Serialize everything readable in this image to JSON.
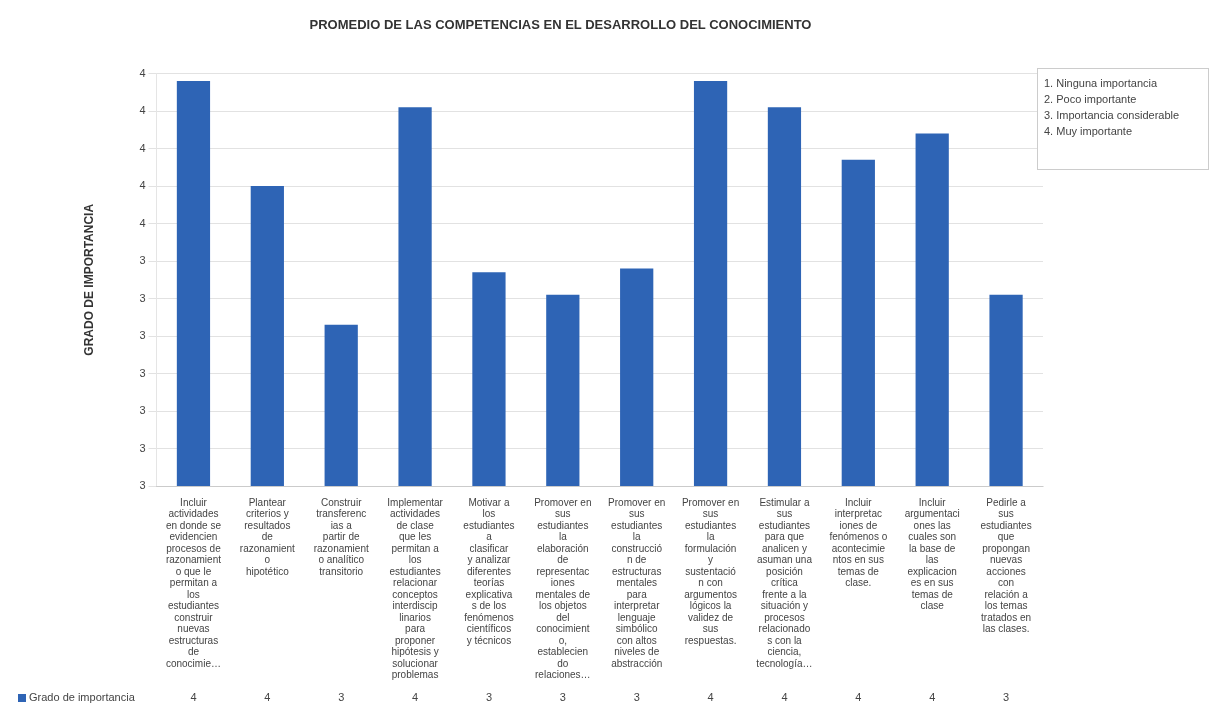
{
  "chart_data": {
    "type": "bar",
    "title": "PROMEDIO DE LAS COMPETENCIAS EN EL DESARROLLO DEL CONOCIMIENTO",
    "ylabel": "GRADO DE IMPORTANCIA",
    "categories": [
      "Incluir actividades en donde se evidencien procesos de razonamiento que le permitan a los estudiantes construir nuevas estructuras de conocimie…",
      "Plantear criterios y resultados de razonamiento hipotético",
      "Construir transferencias a partir de razonamiento analítico transitorio",
      "Implementar actividades de clase que les permitan a los estudiantes relacionar conceptos interdisciplinarios para proponer hipótesis y solucionar problemas",
      "Motivar a los estudiantes a clasificar y analizar diferentes teorías explicativas de los fenómenos científicos y técnicos",
      "Promover en sus estudiantes la elaboración de representaciones mentales de los objetos del conocimiento, estableciendo relaciones…",
      "Promover en sus estudiantes la construcción de estructuras mentales para interpretar lenguaje simbólico con altos niveles de abstracción",
      "Promover en sus estudiantes la formulación y sustentación con argumentos lógicos la validez de sus respuestas.",
      "Estimular a sus estudiantes para que analicen y asuman una posición crítica frente a la situación y procesos relacionados con la ciencia, tecnología…",
      "Incluir interpretaciones de fenómenos o acontecimientos en sus temas de clase.",
      "Incluir argumentaciones las cuales son la base de las explicaciones en sus temas de clase",
      "Pedirle a sus estudiantes que propongan nuevas acciones con relación a los temas tratados en las clases."
    ],
    "series": [
      {
        "name": "Grado de importancia",
        "color": "#2e64b5",
        "values": [
          3.88,
          3.6,
          3.23,
          3.81,
          3.37,
          3.31,
          3.38,
          3.88,
          3.81,
          3.67,
          3.74,
          3.31
        ],
        "value_labels": [
          "4",
          "4",
          "3",
          "4",
          "3",
          "3",
          "3",
          "4",
          "4",
          "4",
          "4",
          "3"
        ]
      }
    ],
    "ylim": [
      2.8,
      3.9
    ],
    "yticks": [
      {
        "value": 2.8,
        "label": "3"
      },
      {
        "value": 2.9,
        "label": "3"
      },
      {
        "value": 3.0,
        "label": "3"
      },
      {
        "value": 3.1,
        "label": "3"
      },
      {
        "value": 3.2,
        "label": "3"
      },
      {
        "value": 3.3,
        "label": "3"
      },
      {
        "value": 3.4,
        "label": "3"
      },
      {
        "value": 3.5,
        "label": "4"
      },
      {
        "value": 3.6,
        "label": "4"
      },
      {
        "value": 3.7,
        "label": "4"
      },
      {
        "value": 3.8,
        "label": "4"
      },
      {
        "value": 3.9,
        "label": "4"
      }
    ],
    "grid": "y",
    "annotations": [
      "1. Ninguna importancia\n2. Poco importante\n3. Importancia considerable\n4. Muy importante"
    ]
  }
}
